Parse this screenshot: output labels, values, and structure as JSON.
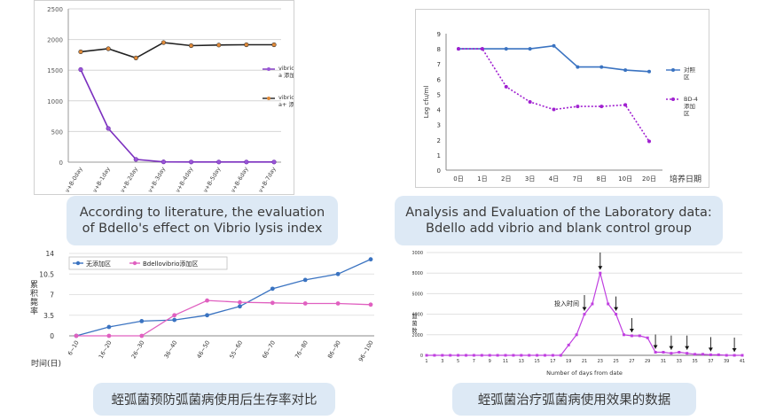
{
  "chart_data": [
    {
      "type": "line",
      "categories": [
        "v+B-0day",
        "v+B-1day",
        "v+B-2day",
        "v+B-3day",
        "v+B-4day",
        "v+B-5day",
        "v+B-6day",
        "v+B-7day"
      ],
      "series": [
        {
          "name": "vibrio penaeid\na 添加区",
          "values": [
            1510,
            550,
            45,
            5,
            3,
            3,
            3,
            3
          ],
          "color": "#7b2fbf"
        },
        {
          "name": "vibrio penaeid\na+ 添加区",
          "values": [
            1800,
            1850,
            1700,
            1950,
            1900,
            1910,
            1915,
            1915
          ],
          "color": "#222222"
        }
      ],
      "ylim": [
        0,
        2500
      ],
      "yticks": [
        0,
        500,
        1000,
        1500,
        2000,
        2500
      ],
      "grid": true,
      "legend": "right"
    },
    {
      "type": "line",
      "categories": [
        "0日",
        "1日",
        "2日",
        "3日",
        "4日",
        "7日",
        "8日",
        "10日",
        "20日"
      ],
      "series": [
        {
          "name": "对照区",
          "values": [
            8,
            8,
            8,
            8,
            8.2,
            6.8,
            6.8,
            6.6,
            6.5
          ],
          "color": "#3a73c1"
        },
        {
          "name": "BD-4添加区",
          "values": [
            8,
            8,
            5.5,
            4.5,
            4.0,
            4.2,
            4.2,
            4.3,
            1.9
          ],
          "color": "#a020d0"
        }
      ],
      "ylabel": "Log cfu/ml",
      "xlabel": "培养日期",
      "ylim": [
        0,
        9
      ],
      "yticks": [
        0,
        1,
        2,
        3,
        4,
        5,
        6,
        7,
        8,
        9
      ],
      "legend": "right"
    },
    {
      "type": "line",
      "categories": [
        "6~10",
        "16~20",
        "26~30",
        "36~40",
        "46~50",
        "55~60",
        "66~70",
        "76~80",
        "86~90",
        "96~100"
      ],
      "series": [
        {
          "name": "无添加区",
          "values": [
            0,
            1.5,
            2.5,
            2.7,
            3.5,
            5,
            8,
            9.5,
            10.5,
            13
          ],
          "color": "#3a73c1"
        },
        {
          "name": "Bdellovibrio添加区",
          "values": [
            0,
            0,
            0,
            3.5,
            6,
            5.7,
            5.6,
            5.5,
            5.5,
            5.3
          ],
          "color": "#e060c0"
        }
      ],
      "ylabel": "累积斃率",
      "xlabel": "时间(日)",
      "ylim": [
        0,
        14
      ],
      "yticks": [
        0,
        3.5,
        7,
        10.5,
        14
      ],
      "ytick_labels": [
        "0",
        "3.5",
        "7",
        "10.5",
        "14"
      ],
      "legend": "top-left"
    },
    {
      "type": "line",
      "x": [
        1,
        2,
        3,
        4,
        5,
        6,
        7,
        8,
        9,
        10,
        11,
        12,
        13,
        14,
        15,
        16,
        17,
        18,
        19,
        20,
        21,
        22,
        23,
        24,
        25,
        26,
        27,
        28,
        29,
        30,
        31,
        32,
        33,
        34,
        35,
        36,
        37,
        38,
        39,
        40,
        41
      ],
      "series": [
        {
          "name": "",
          "values": [
            0,
            0,
            0,
            0,
            0,
            0,
            0,
            0,
            0,
            0,
            0,
            0,
            0,
            0,
            0,
            0,
            0,
            0,
            1000,
            2000,
            4000,
            5000,
            8000,
            5000,
            4000,
            2000,
            1900,
            1900,
            1700,
            300,
            300,
            200,
            300,
            200,
            100,
            100,
            50,
            50,
            0,
            0,
            0
          ],
          "color": "#c040e0"
        }
      ],
      "xticks": [
        1,
        3,
        5,
        7,
        9,
        11,
        13,
        15,
        17,
        19,
        21,
        23,
        25,
        27,
        29,
        31,
        33,
        35,
        37,
        39,
        41
      ],
      "yticks": [
        0,
        2000,
        4000,
        6000,
        8000,
        10000
      ],
      "ylim": [
        0,
        10000
      ],
      "xlabel": "Number of days from date",
      "ylabel": "弧菌数",
      "annotation": "投入时间",
      "arrow_days": [
        21,
        23,
        25,
        27,
        30,
        32,
        34,
        37,
        40
      ]
    }
  ],
  "captions": {
    "c1_line1": "According to literature, the evaluation",
    "c1_line2": "of Bdello's effect on Vibrio lysis index",
    "c2_line1": "Analysis and Evaluation of the Laboratory data:",
    "c2_line2": "Bdello add vibrio and  blank control group",
    "c3": "蛭弧菌预防弧菌病使用后生存率对比",
    "c4": "蛭弧菌治疗弧菌病使用效果的数据"
  }
}
